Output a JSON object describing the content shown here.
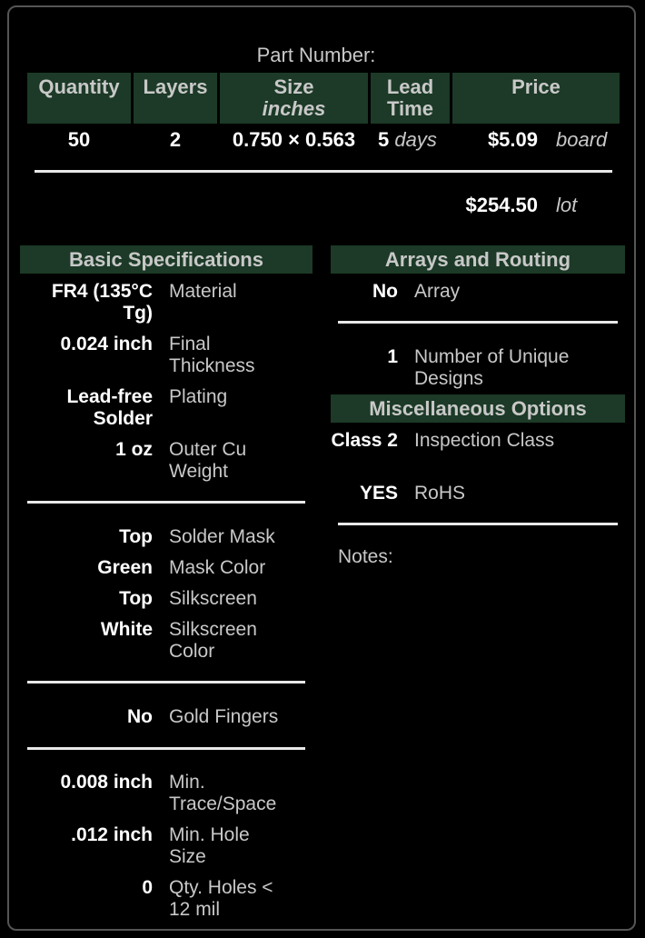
{
  "header": {
    "part_number_label": "Part Number:",
    "columns": {
      "quantity": "Quantity",
      "layers": "Layers",
      "size": "Size",
      "size_unit": "inches",
      "lead_time_line1": "Lead",
      "lead_time_line2": "Time",
      "price": "Price"
    }
  },
  "order": {
    "quantity": "50",
    "layers": "2",
    "size": "0.750 × 0.563",
    "lead_time_value": "5",
    "lead_time_unit": "days",
    "price_board": "$5.09",
    "price_board_unit": "board",
    "price_lot": "$254.50",
    "price_lot_unit": "lot"
  },
  "basic": {
    "title": "Basic Specifications",
    "material_value": "FR4 (135°C Tg)",
    "material_label": "Material",
    "thickness_value": "0.024 inch",
    "thickness_label": "Final Thickness",
    "plating_value": "Lead-free Solder",
    "plating_label": "Plating",
    "outer_cu_value": "1 oz",
    "outer_cu_label": "Outer Cu Weight",
    "solder_mask_value": "Top",
    "solder_mask_label": "Solder Mask",
    "mask_color_value": "Green",
    "mask_color_label": "Mask Color",
    "silkscreen_value": "Top",
    "silkscreen_label": "Silkscreen",
    "silk_color_value": "White",
    "silk_color_label": "Silkscreen Color",
    "gold_value": "No",
    "gold_label": "Gold Fingers",
    "trace_value": "0.008 inch",
    "trace_label": "Min. Trace/Space",
    "hole_value": ".012 inch",
    "hole_label": "Min. Hole Size",
    "holes12_value": "0",
    "holes12_label": "Qty. Holes < 12 mil"
  },
  "arrays": {
    "title": "Arrays and Routing",
    "array_value": "No",
    "array_label": "Array",
    "designs_value": "1",
    "designs_label": "Number of Unique Designs"
  },
  "misc": {
    "title": "Miscellaneous Options",
    "inspection_value": "Class 2",
    "inspection_label": "Inspection Class",
    "rohs_value": "YES",
    "rohs_label": "RoHS"
  },
  "notes_label": "Notes:"
}
